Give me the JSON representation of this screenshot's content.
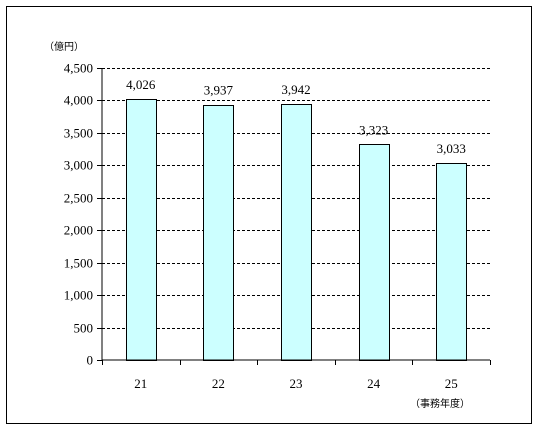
{
  "chart_data": {
    "type": "bar",
    "categories": [
      "21",
      "22",
      "23",
      "24",
      "25"
    ],
    "values": [
      4026,
      3937,
      3942,
      3323,
      3033
    ],
    "value_labels": [
      "4,026",
      "3,937",
      "3,942",
      "3,323",
      "3,033"
    ],
    "y_unit": "（億円）",
    "x_unit": "（事務年度）",
    "ylim": [
      0,
      4500
    ],
    "y_ticks": [
      0,
      500,
      1000,
      1500,
      2000,
      2500,
      3000,
      3500,
      4000,
      4500
    ],
    "y_tick_labels": [
      "0",
      "500",
      "1,000",
      "1,500",
      "2,000",
      "2,500",
      "3,000",
      "3,500",
      "4,000",
      "4,500"
    ],
    "grid": "dashed horizontal",
    "legend": "none",
    "colors": {
      "bar_fill": "#ccffff",
      "bar_stroke": "#000000",
      "grid": "#000000"
    }
  }
}
